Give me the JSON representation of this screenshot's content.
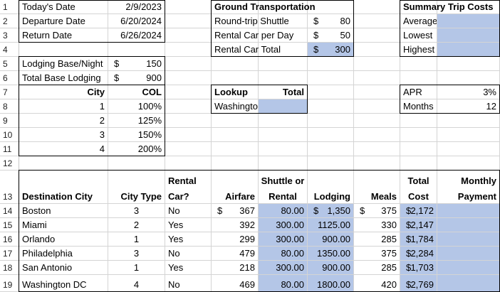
{
  "sheet": {
    "row_numbers": [
      "1",
      "2",
      "3",
      "4",
      "5",
      "6",
      "7",
      "8",
      "9",
      "10",
      "11",
      "12",
      "13",
      "14",
      "15",
      "16",
      "17",
      "18",
      "19"
    ],
    "info": {
      "todays_date_label": "Today's Date",
      "todays_date_value": "2/9/2023",
      "departure_label": "Departure Date",
      "departure_value": "6/20/2024",
      "return_label": "Return Date",
      "return_value": "6/26/2024",
      "lodging_base_label": "Lodging Base/Night",
      "lodging_base_cur": "$",
      "lodging_base_value": "150",
      "total_lodging_label": "Total Base Lodging",
      "total_lodging_cur": "$",
      "total_lodging_value": "900"
    },
    "col_table": {
      "header_city": "City",
      "header_col": "COL",
      "rows": [
        {
          "city": "1",
          "col": "100%"
        },
        {
          "city": "2",
          "col": "125%"
        },
        {
          "city": "3",
          "col": "150%"
        },
        {
          "city": "4",
          "col": "200%"
        }
      ]
    },
    "ground": {
      "title": "Ground Transportation",
      "shuttle_label": "Round-trip Shuttle",
      "shuttle_cur": "$",
      "shuttle_value": "80",
      "rental_day_label": "Rental Car per Day",
      "rental_day_cur": "$",
      "rental_day_value": "50",
      "rental_total_label": "Rental Car Total",
      "rental_total_cur": "$",
      "rental_total_value": "300"
    },
    "lookup": {
      "title": "Lookup",
      "total_label": "Total",
      "city_value": "Washington DC"
    },
    "summary": {
      "title": "Summary Trip Costs",
      "average_label": "Average",
      "lowest_label": "Lowest",
      "highest_label": "Highest"
    },
    "apr": {
      "apr_label": "APR",
      "apr_value": "3%",
      "months_label": "Months",
      "months_value": "12"
    },
    "main_table": {
      "headers": {
        "dest": "Destination City",
        "city_type": "City Type",
        "rental_1": "Rental",
        "rental_2": "Car?",
        "airfare": "Airfare",
        "shuttle_1": "Shuttle or",
        "shuttle_2": "Rental",
        "lodging": "Lodging",
        "meals": "Meals",
        "total_1": "Total",
        "total_2": "Cost",
        "monthly_1": "Monthly",
        "monthly_2": "Payment"
      },
      "rows": [
        {
          "city": "Boston",
          "type": "3",
          "rental": "No",
          "air_cur": "$",
          "airfare": "367",
          "shuttle": "80.00",
          "lodg_cur": "$",
          "lodging": "1,350",
          "meals_cur": "$",
          "meals": "375",
          "total_cur": "$",
          "total": "2,172"
        },
        {
          "city": "Miami",
          "type": "2",
          "rental": "Yes",
          "air_cur": "",
          "airfare": "392",
          "shuttle": "300.00",
          "lodg_cur": "",
          "lodging": "1125.00",
          "meals_cur": "",
          "meals": "330",
          "total_cur": "$",
          "total": "2,147"
        },
        {
          "city": "Orlando",
          "type": "1",
          "rental": "Yes",
          "air_cur": "",
          "airfare": "299",
          "shuttle": "300.00",
          "lodg_cur": "",
          "lodging": "900.00",
          "meals_cur": "",
          "meals": "285",
          "total_cur": "$",
          "total": "1,784"
        },
        {
          "city": "Philadelphia",
          "type": "3",
          "rental": "No",
          "air_cur": "",
          "airfare": "479",
          "shuttle": "80.00",
          "lodg_cur": "",
          "lodging": "1350.00",
          "meals_cur": "",
          "meals": "375",
          "total_cur": "$",
          "total": "2,284"
        },
        {
          "city": "San Antonio",
          "type": "1",
          "rental": "Yes",
          "air_cur": "",
          "airfare": "218",
          "shuttle": "300.00",
          "lodg_cur": "",
          "lodging": "900.00",
          "meals_cur": "",
          "meals": "285",
          "total_cur": "$",
          "total": "1,703"
        },
        {
          "city": "Washington DC",
          "type": "4",
          "rental": "No",
          "air_cur": "",
          "airfare": "469",
          "shuttle": "80.00",
          "lodg_cur": "",
          "lodging": "1800.00",
          "meals_cur": "",
          "meals": "420",
          "total_cur": "$",
          "total": "2,769"
        }
      ]
    },
    "colors": {
      "highlight": "#b4c6e7",
      "gridline": "#d4d4d4",
      "border": "#000000"
    }
  }
}
